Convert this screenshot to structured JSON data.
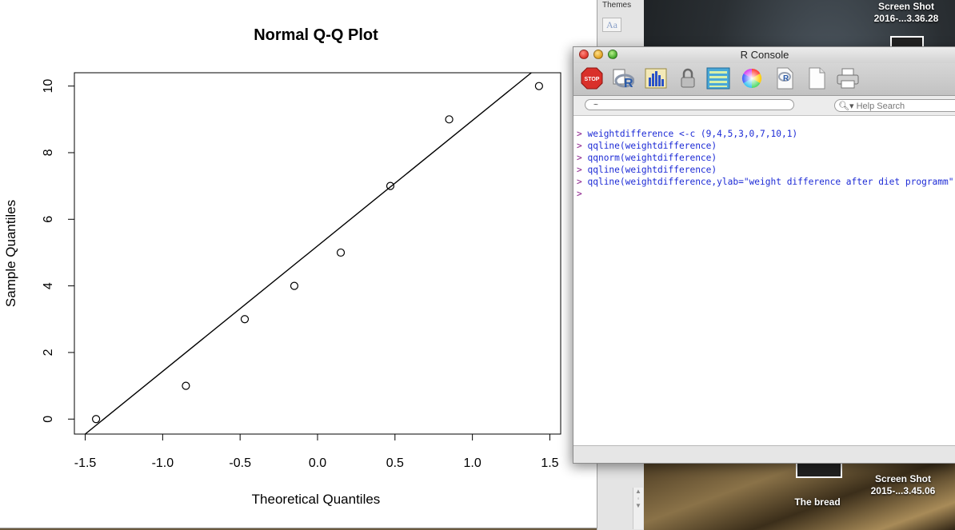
{
  "desktop": {
    "screenshot_top": {
      "line1": "Screen Shot",
      "line2": "2016-...3.36.28"
    },
    "screenshot_bottom": {
      "line1": "Screen Shot",
      "line2": "2015-...3.45.06"
    },
    "folder_label": "The bread"
  },
  "side_panel": {
    "themes_label": "Themes",
    "font_button": "Aa"
  },
  "plot": {
    "title": "Normal Q-Q Plot",
    "chart_data": {
      "type": "scatter",
      "title": "Normal Q-Q Plot",
      "xlabel": "Theoretical Quantiles",
      "ylabel": "Sample Quantiles",
      "xlim": [
        -1.5,
        1.5
      ],
      "ylim": [
        0,
        10
      ],
      "x_ticks": [
        "-1.5",
        "-1.0",
        "-0.5",
        "0.0",
        "0.5",
        "1.0",
        "1.5"
      ],
      "y_ticks": [
        "0",
        "2",
        "4",
        "6",
        "8",
        "10"
      ],
      "points": [
        {
          "x": -1.43,
          "y": 0
        },
        {
          "x": -0.85,
          "y": 1
        },
        {
          "x": -0.47,
          "y": 3
        },
        {
          "x": -0.15,
          "y": 4
        },
        {
          "x": 0.15,
          "y": 5
        },
        {
          "x": 0.47,
          "y": 7
        },
        {
          "x": 0.85,
          "y": 9
        },
        {
          "x": 1.43,
          "y": 10
        }
      ],
      "reference_line": {
        "x1": -1.5,
        "y1": -0.45,
        "x2": 1.5,
        "y2": 10.85
      },
      "grid": false,
      "legend": "none"
    }
  },
  "console": {
    "title": "R Console",
    "path_value": "~",
    "help_search_placeholder": "Help Search",
    "lines": [
      {
        "prompt": ">",
        "text": " weightdifference <-c (9,4,5,3,0,7,10,1)"
      },
      {
        "prompt": ">",
        "text": " qqline(weightdifference)"
      },
      {
        "prompt": ">",
        "text": " qqnorm(weightdifference)"
      },
      {
        "prompt": ">",
        "text": " qqline(weightdifference)"
      },
      {
        "prompt": ">",
        "text": " qqline(weightdifference,ylab=\"weight difference after diet programm\")"
      },
      {
        "prompt": ">",
        "text": ""
      }
    ],
    "toolbar": {
      "stop_label": "STOP",
      "icons": [
        "stop-icon",
        "r-source-icon",
        "bar-chart-icon",
        "lock-icon",
        "list-icon",
        "color-wheel-icon",
        "r-doc-icon",
        "new-document-icon",
        "printer-icon"
      ]
    }
  }
}
